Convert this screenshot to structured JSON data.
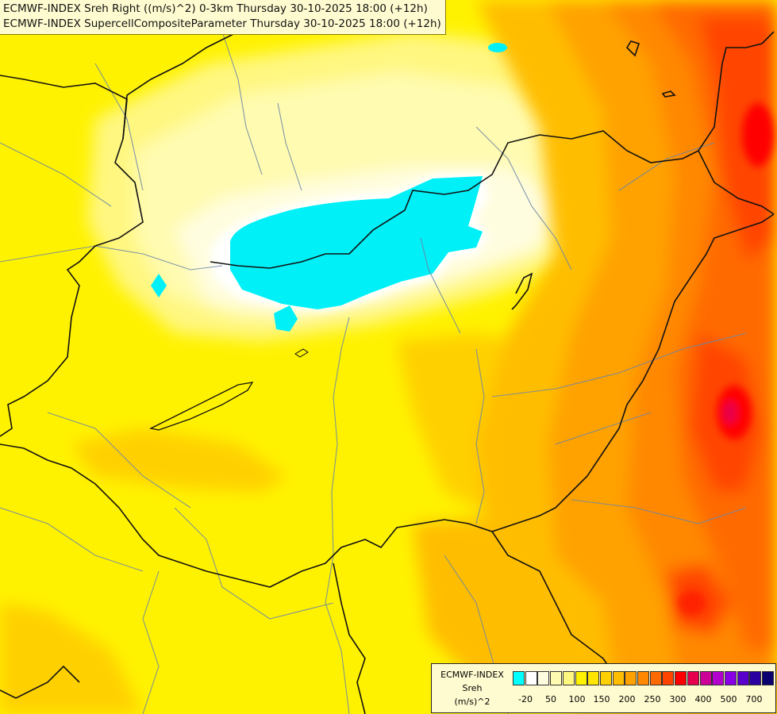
{
  "title": {
    "line1": "ECMWF-INDEX Sreh Right ((m/s)^2) 0-3km Thursday 30-10-2025 18:00 (+12h)",
    "line2": "ECMWF-INDEX SupercellCompositeParameter Thursday 30-10-2025 18:00 (+12h)"
  },
  "legend": {
    "line1": "ECMWF-INDEX",
    "line2": "Sreh",
    "line3": "(m/s)^2",
    "colors": [
      "#00ffff",
      "#ffffff",
      "#fffde0",
      "#fffbb0",
      "#fff780",
      "#fff200",
      "#ffe500",
      "#ffd000",
      "#ffbd00",
      "#ffa200",
      "#ff8800",
      "#ff6a00",
      "#ff4400",
      "#ff0000",
      "#e6004d",
      "#cc0099",
      "#b300cc",
      "#8a00e6",
      "#5a00cc",
      "#2a00a0",
      "#0a0070"
    ],
    "ticks": [
      "-20",
      "50",
      "100",
      "150",
      "200",
      "250",
      "300",
      "400",
      "500",
      "700"
    ]
  }
}
